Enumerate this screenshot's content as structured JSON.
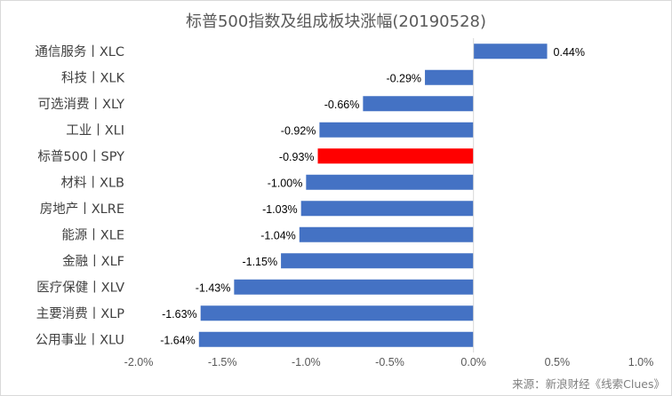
{
  "chart_data": {
    "type": "bar",
    "orientation": "horizontal",
    "title": "标普500指数及组成板块涨幅(20190528)",
    "categories": [
      "通信服务丨XLC",
      "科技丨XLK",
      "可选消费丨XLY",
      "工业丨XLI",
      "标普500丨SPY",
      "材料丨XLB",
      "房地产丨XLRE",
      "能源丨XLE",
      "金融丨XLF",
      "医疗保健丨XLV",
      "主要消费丨XLP",
      "公用事业丨XLU"
    ],
    "values": [
      0.44,
      -0.29,
      -0.66,
      -0.92,
      -0.93,
      -1.0,
      -1.03,
      -1.04,
      -1.15,
      -1.43,
      -1.63,
      -1.64
    ],
    "value_labels": [
      "0.44%",
      "-0.29%",
      "-0.66%",
      "-0.92%",
      "-0.93%",
      "-1.00%",
      "-1.03%",
      "-1.04%",
      "-1.15%",
      "-1.43%",
      "-1.63%",
      "-1.64%"
    ],
    "xlim": [
      -2.0,
      1.0
    ],
    "x_ticks": [
      -2.0,
      -1.5,
      -1.0,
      -0.5,
      0.0,
      0.5,
      1.0
    ],
    "x_tick_labels": [
      "-2.0%",
      "-1.5%",
      "-1.0%",
      "-0.5%",
      "0.0%",
      "0.5%",
      "1.0%"
    ],
    "xlabel": "",
    "ylabel": "",
    "grid": false,
    "legend": false,
    "colors": {
      "default": "#4472c4",
      "highlight": "#ff0000"
    },
    "highlight_category": "标普500丨SPY"
  },
  "source_note": "来源：新浪财经《线索Clues》"
}
